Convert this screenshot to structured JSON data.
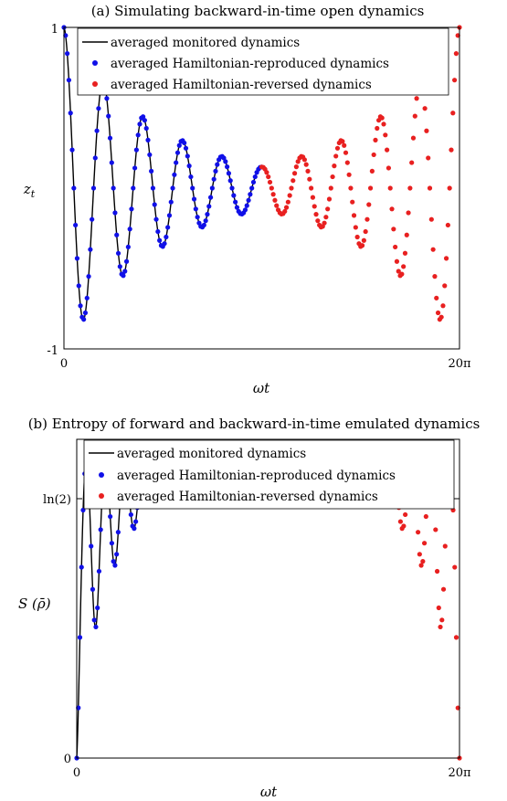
{
  "chart_data": [
    {
      "id": "a",
      "type": "scatter",
      "title": "(a) Simulating backward-in-time open dynamics",
      "xlabel": "ωt",
      "ylabel": "z",
      "ylabel_sub": "t",
      "xlim": [
        0,
        62.832
      ],
      "ylim": [
        -1,
        1
      ],
      "x_ticks": [
        {
          "value": 0,
          "label": "0"
        },
        {
          "value": 62.832,
          "label": "20π"
        }
      ],
      "y_ticks": [
        {
          "value": -1,
          "label": "-1"
        },
        {
          "value": 1,
          "label": "1"
        }
      ],
      "grid": false,
      "legend_position": "top-right",
      "damping_rate": 0.0645,
      "oscillation_frequency": 1,
      "turnaround_x": 31.416,
      "series": [
        {
          "name": "averaged monitored dynamics",
          "kind": "line",
          "color": "#000000",
          "x_range": [
            0,
            31.416
          ],
          "formula": "exp(-0.0645 x) cos(x)"
        },
        {
          "name": "averaged Hamiltonian-reproduced dynamics",
          "kind": "points",
          "color": "#1010e8",
          "x_range": [
            0,
            31.416
          ],
          "step": 0.2618,
          "formula": "exp(-0.0645 x) cos(x)"
        },
        {
          "name": "averaged Hamiltonian-reversed dynamics",
          "kind": "points",
          "color": "#e82020",
          "x_range": [
            31.416,
            62.832
          ],
          "step": 0.2618,
          "formula": "exp(-0.0645 (62.832 - x)) cos(x)"
        }
      ]
    },
    {
      "id": "b",
      "type": "scatter",
      "title": "(b) Entropy of forward and backward-in-time emulated dynamics",
      "xlabel": "ωt",
      "ylabel": "S (ρ̄)",
      "xlim": [
        0,
        62.832
      ],
      "ylim": [
        0,
        0.745
      ],
      "x_ticks": [
        {
          "value": 0,
          "label": "0"
        },
        {
          "value": 62.832,
          "label": "20π"
        }
      ],
      "y_ticks": [
        {
          "value": 0,
          "label": "0"
        },
        {
          "value": 0.693,
          "label": "ln(2)"
        }
      ],
      "grid": false,
      "legend_position": "top",
      "series": [
        {
          "name": "averaged monitored dynamics",
          "kind": "line",
          "color": "#000000",
          "x_range": [
            0,
            31.416
          ],
          "formula": "entropy of z(x)"
        },
        {
          "name": "averaged Hamiltonian-reproduced dynamics",
          "kind": "points",
          "color": "#1010e8",
          "x_range": [
            0,
            31.416
          ],
          "step": 0.2618,
          "formula": "entropy of z(x)"
        },
        {
          "name": "averaged Hamiltonian-reversed dynamics",
          "kind": "points",
          "color": "#e82020",
          "x_range": [
            31.416,
            62.832
          ],
          "step": 0.2618,
          "formula": "entropy of z(x)"
        }
      ]
    }
  ]
}
